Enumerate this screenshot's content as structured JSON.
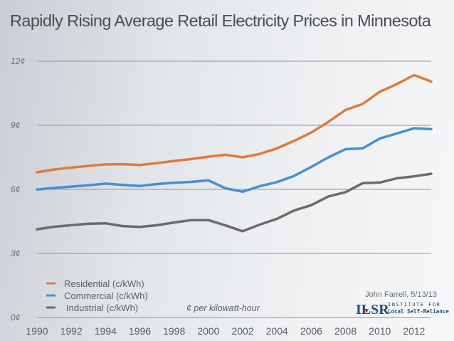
{
  "chart_data": {
    "type": "line",
    "title": "Rapidly Rising Average Retail Electricity Prices in Minnesota",
    "xlabel": "",
    "ylabel": "",
    "unit_note": "¢ per kilowatt-hour",
    "ylim": [
      0,
      12
    ],
    "xlim": [
      1990,
      2013
    ],
    "grid": true,
    "yticks": [
      0,
      3,
      6,
      9,
      12
    ],
    "ytick_labels": [
      "0¢",
      "3¢",
      "6¢",
      "9¢",
      "12¢"
    ],
    "xtick_labels": [
      "1990",
      "1992",
      "1994",
      "1996",
      "1998",
      "2000",
      "2002",
      "2004",
      "2006",
      "2008",
      "2010",
      "2012"
    ],
    "x": [
      1990,
      1991,
      1992,
      1993,
      1994,
      1995,
      1996,
      1997,
      1998,
      1999,
      2000,
      2001,
      2002,
      2003,
      2004,
      2005,
      2006,
      2007,
      2008,
      2009,
      2010,
      2011,
      2012,
      2013
    ],
    "legend_position": "bottom-left",
    "series": [
      {
        "name": "Residential (c/kWh)",
        "color": "#e07b39",
        "values": [
          6.8,
          6.93,
          7.02,
          7.1,
          7.17,
          7.18,
          7.14,
          7.23,
          7.33,
          7.42,
          7.53,
          7.62,
          7.5,
          7.66,
          7.92,
          8.27,
          8.66,
          9.16,
          9.72,
          10.0,
          10.57,
          10.93,
          11.35,
          11.05
        ]
      },
      {
        "name": "Commercial (c/kWh)",
        "color": "#4a8fd0",
        "values": [
          5.99,
          6.07,
          6.13,
          6.19,
          6.27,
          6.21,
          6.16,
          6.25,
          6.31,
          6.35,
          6.42,
          6.05,
          5.89,
          6.15,
          6.34,
          6.63,
          7.05,
          7.5,
          7.88,
          7.92,
          8.38,
          8.62,
          8.86,
          8.82
        ]
      },
      {
        "name": "Industrial (c/kWh)",
        "color": "#6b6b6b",
        "values": [
          4.13,
          4.25,
          4.32,
          4.39,
          4.41,
          4.28,
          4.24,
          4.32,
          4.45,
          4.56,
          4.56,
          4.31,
          4.04,
          4.35,
          4.62,
          5.01,
          5.26,
          5.67,
          5.87,
          6.29,
          6.32,
          6.52,
          6.61,
          6.73
        ]
      }
    ]
  },
  "credit": "John Farrell, 5/13/13",
  "logo": {
    "main": "ILSR",
    "line1": "INSTITUTE FOR",
    "line2": "Local Self-Reliance"
  }
}
